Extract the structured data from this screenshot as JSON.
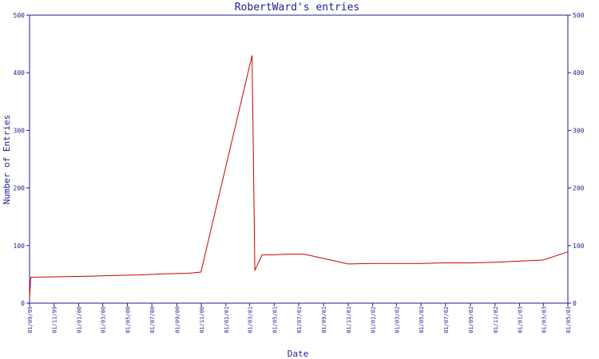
{
  "chart_data": {
    "type": "line",
    "title": "RobertWard's entries",
    "xlabel": "Date",
    "ylabel": "Number of Entries",
    "ylim": [
      0,
      500
    ],
    "y_ticks": [
      0,
      100,
      200,
      300,
      400,
      500
    ],
    "x_tick_labels": [
      "01/09/99",
      "01/11/99",
      "01/01/00",
      "01/03/00",
      "01/05/00",
      "01/07/00",
      "01/09/00",
      "01/11/00",
      "01/01/01",
      "01/03/01",
      "01/05/01",
      "01/07/01",
      "01/09/01",
      "01/11/01",
      "01/01/02",
      "01/03/02",
      "01/05/02",
      "01/07/02",
      "01/09/02",
      "01/11/02",
      "01/01/03",
      "01/03/03",
      "01/05/03"
    ],
    "series": [
      {
        "color": "#cc0000",
        "points": [
          {
            "x": "01/09/99",
            "y": 8
          },
          {
            "x": "04/09/99",
            "y": 45
          },
          {
            "x": "01/12/99",
            "y": 46
          },
          {
            "x": "01/02/00",
            "y": 47
          },
          {
            "x": "01/04/00",
            "y": 48
          },
          {
            "x": "01/06/00",
            "y": 49
          },
          {
            "x": "01/08/00",
            "y": 51
          },
          {
            "x": "01/10/00",
            "y": 52
          },
          {
            "x": "31/10/00",
            "y": 54
          },
          {
            "x": "07/03/01",
            "y": 430
          },
          {
            "x": "14/03/01",
            "y": 57
          },
          {
            "x": "01/04/01",
            "y": 84
          },
          {
            "x": "01/05/01",
            "y": 84
          },
          {
            "x": "01/06/01",
            "y": 85
          },
          {
            "x": "15/07/01",
            "y": 85
          },
          {
            "x": "01/11/01",
            "y": 68
          },
          {
            "x": "01/01/02",
            "y": 69
          },
          {
            "x": "01/03/02",
            "y": 69
          },
          {
            "x": "01/05/02",
            "y": 69
          },
          {
            "x": "01/07/02",
            "y": 70
          },
          {
            "x": "01/09/02",
            "y": 70
          },
          {
            "x": "01/11/02",
            "y": 71
          },
          {
            "x": "01/01/03",
            "y": 73
          },
          {
            "x": "01/03/03",
            "y": 75
          },
          {
            "x": "01/05/03",
            "y": 89
          }
        ]
      }
    ]
  }
}
